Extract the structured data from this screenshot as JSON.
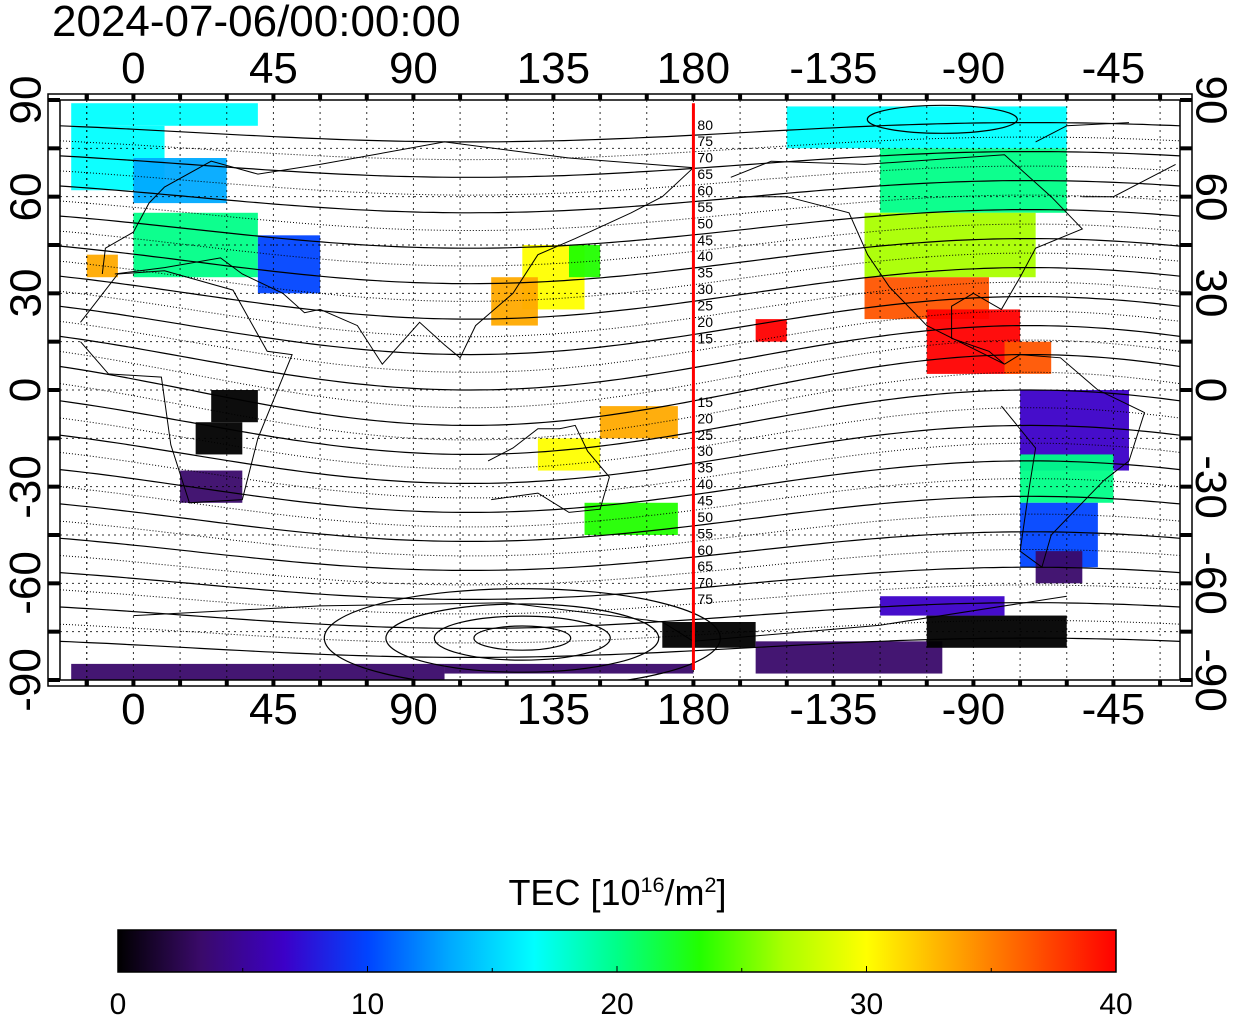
{
  "title": "2024-07-06/00:00:00",
  "map": {
    "lon_ticks_top": [
      "0",
      "45",
      "90",
      "135",
      "180",
      "-135",
      "-90",
      "-45"
    ],
    "lon_ticks_bottom": [
      "0",
      "45",
      "90",
      "135",
      "180",
      "-135",
      "-90",
      "-45"
    ],
    "lat_ticks_left": [
      "90",
      "60",
      "30",
      "0",
      "-30",
      "-60",
      "-90"
    ],
    "lat_ticks_right": [
      "90",
      "60",
      "30",
      "0",
      "-30",
      "-60",
      "-90"
    ],
    "magnetic_lat_labels_north": [
      "80",
      "75",
      "70",
      "65",
      "60",
      "55",
      "50",
      "45",
      "40",
      "35",
      "30",
      "25",
      "20",
      "15"
    ],
    "magnetic_lat_labels_south": [
      "15",
      "20",
      "25",
      "30",
      "35",
      "40",
      "45",
      "50",
      "55",
      "60",
      "65",
      "70",
      "75"
    ],
    "meridian_line_color": "#ff0000"
  },
  "colorbar": {
    "label_prefix": "TEC  [10",
    "label_sup1": "16",
    "label_mid": "/m",
    "label_sup2": "2",
    "label_suffix": "]",
    "min": 0,
    "max": 40,
    "ticks": [
      "0",
      "10",
      "20",
      "30",
      "40"
    ],
    "colors": [
      "#000000",
      "#3a0a6a",
      "#3c00c8",
      "#0044ff",
      "#00aaff",
      "#00ffff",
      "#00ff88",
      "#22ff00",
      "#aaff00",
      "#ffff00",
      "#ffaa00",
      "#ff5500",
      "#ff0000"
    ]
  }
}
